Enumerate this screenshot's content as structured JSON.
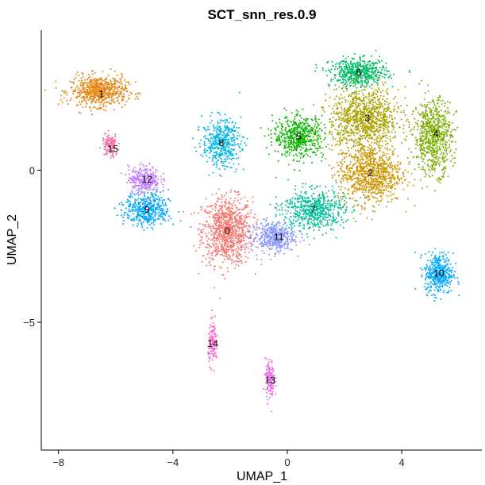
{
  "chart_data": {
    "type": "scatter",
    "title": "SCT_snn_res.0.9",
    "xlabel": "UMAP_1",
    "ylabel": "UMAP_2",
    "xlim": [
      -8.6,
      6.8
    ],
    "ylim": [
      -9.2,
      4.6
    ],
    "xticks": [
      -8,
      -4,
      0,
      4
    ],
    "yticks": [
      -5,
      0
    ],
    "xtick_labels": [
      "−8",
      "−4",
      "0",
      "4"
    ],
    "ytick_labels": [
      "−5",
      "0"
    ],
    "grid": false,
    "legend": "none",
    "clusters": [
      {
        "label": "0",
        "color": "#F8766D",
        "center": [
          -2.1,
          -2.0
        ],
        "spread": [
          0.8,
          1.0
        ],
        "n": 900,
        "label_pos": [
          -2.1,
          -2.0
        ]
      },
      {
        "label": "1",
        "color": "#E68613",
        "center": [
          -6.6,
          2.6
        ],
        "spread": [
          0.9,
          0.45
        ],
        "n": 650,
        "label_pos": [
          -6.5,
          2.5
        ]
      },
      {
        "label": "2",
        "color": "#CD9600",
        "center": [
          2.9,
          -0.1
        ],
        "spread": [
          1.0,
          0.9
        ],
        "n": 900,
        "label_pos": [
          2.9,
          -0.1
        ]
      },
      {
        "label": "3",
        "color": "#ABA300",
        "center": [
          2.7,
          1.7
        ],
        "spread": [
          1.1,
          0.9
        ],
        "n": 1000,
        "label_pos": [
          2.8,
          1.7
        ]
      },
      {
        "label": "4",
        "color": "#7CAE00",
        "center": [
          5.1,
          1.1
        ],
        "spread": [
          0.6,
          1.1
        ],
        "n": 700,
        "label_pos": [
          5.2,
          1.2
        ]
      },
      {
        "label": "5",
        "color": "#0CB702",
        "center": [
          0.4,
          1.1
        ],
        "spread": [
          0.8,
          0.6
        ],
        "n": 550,
        "label_pos": [
          0.4,
          1.1
        ]
      },
      {
        "label": "6",
        "color": "#00BE67",
        "center": [
          2.5,
          3.2
        ],
        "spread": [
          0.9,
          0.4
        ],
        "n": 550,
        "label_pos": [
          2.5,
          3.2
        ]
      },
      {
        "label": "7",
        "color": "#00C19A",
        "center": [
          0.9,
          -1.3
        ],
        "spread": [
          1.0,
          0.6
        ],
        "n": 600,
        "label_pos": [
          0.9,
          -1.3
        ]
      },
      {
        "label": "8",
        "color": "#00B8E7",
        "center": [
          -2.3,
          0.9
        ],
        "spread": [
          0.6,
          0.7
        ],
        "n": 450,
        "label_pos": [
          -2.3,
          0.9
        ]
      },
      {
        "label": "9",
        "color": "#00A9FF",
        "center": [
          -4.9,
          -1.3
        ],
        "spread": [
          0.7,
          0.5
        ],
        "n": 450,
        "label_pos": [
          -4.9,
          -1.3
        ]
      },
      {
        "label": "10",
        "color": "#00A9FF",
        "center": [
          5.3,
          -3.4
        ],
        "spread": [
          0.45,
          0.6
        ],
        "n": 400,
        "label_pos": [
          5.3,
          -3.4
        ]
      },
      {
        "label": "11",
        "color": "#8494FF",
        "center": [
          -0.5,
          -2.2
        ],
        "spread": [
          0.7,
          0.45
        ],
        "n": 400,
        "label_pos": [
          -0.3,
          -2.2
        ]
      },
      {
        "label": "12",
        "color": "#C77CFF",
        "center": [
          -5.0,
          -0.3
        ],
        "spread": [
          0.5,
          0.4
        ],
        "n": 300,
        "label_pos": [
          -4.9,
          -0.3
        ]
      },
      {
        "label": "13",
        "color": "#ED68ED",
        "center": [
          -0.6,
          -6.9
        ],
        "spread": [
          0.15,
          0.6
        ],
        "n": 130,
        "label_pos": [
          -0.6,
          -6.9
        ]
      },
      {
        "label": "14",
        "color": "#FF61CC",
        "center": [
          -2.6,
          -5.7
        ],
        "spread": [
          0.15,
          0.6
        ],
        "n": 120,
        "label_pos": [
          -2.6,
          -5.7
        ]
      },
      {
        "label": "15",
        "color": "#FF68A1",
        "center": [
          -6.2,
          0.8
        ],
        "spread": [
          0.25,
          0.35
        ],
        "n": 120,
        "label_pos": [
          -6.1,
          0.7
        ]
      }
    ]
  }
}
